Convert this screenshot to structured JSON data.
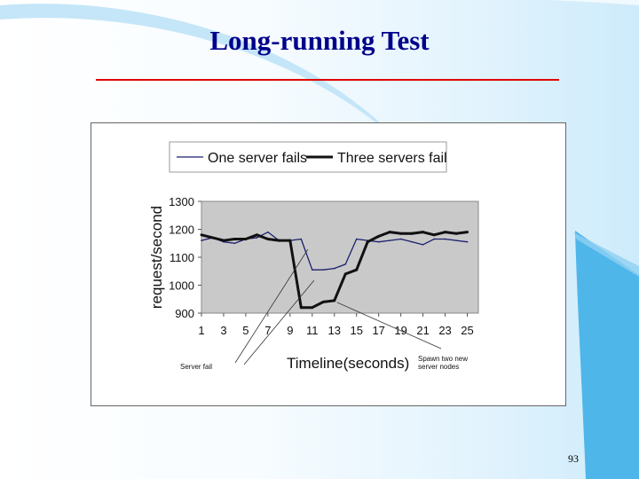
{
  "slide": {
    "title": "Long-running Test",
    "page_number": "93"
  },
  "chart_data": {
    "type": "line",
    "title": "",
    "xlabel": "Timeline(seconds)",
    "ylabel": "request/second",
    "xlim": [
      1,
      26
    ],
    "ylim": [
      900,
      1300
    ],
    "x_ticks": [
      "1",
      "3",
      "5",
      "7",
      "9",
      "11",
      "13",
      "15",
      "17",
      "19",
      "21",
      "23",
      "25"
    ],
    "y_ticks": [
      "1300",
      "1200",
      "1100",
      "1000",
      "900"
    ],
    "grid": false,
    "legend": "top",
    "series": [
      {
        "name": "One server fails",
        "color": "#1a1f6e",
        "style": "thin",
        "x": [
          1,
          2,
          3,
          4,
          5,
          6,
          7,
          8,
          9,
          10,
          11,
          12,
          13,
          14,
          15,
          16,
          17,
          18,
          19,
          20,
          21,
          22,
          23,
          24,
          25
        ],
        "values": [
          1160,
          1170,
          1155,
          1150,
          1165,
          1170,
          1190,
          1160,
          1160,
          1165,
          1055,
          1055,
          1060,
          1075,
          1165,
          1160,
          1155,
          1160,
          1165,
          1155,
          1145,
          1165,
          1165,
          1160,
          1155
        ]
      },
      {
        "name": "Three servers fail",
        "color": "#111111",
        "style": "thick",
        "x": [
          1,
          2,
          3,
          4,
          5,
          6,
          7,
          8,
          9,
          10,
          11,
          12,
          13,
          14,
          15,
          16,
          17,
          18,
          19,
          20,
          21,
          22,
          23,
          24,
          25
        ],
        "values": [
          1180,
          1170,
          1160,
          1165,
          1165,
          1180,
          1165,
          1160,
          1160,
          920,
          920,
          940,
          945,
          1040,
          1055,
          1155,
          1175,
          1190,
          1185,
          1185,
          1190,
          1180,
          1190,
          1185,
          1190
        ]
      }
    ],
    "annotations": [
      {
        "text": "Server fail",
        "target_x": 9,
        "target_y": 1160
      },
      {
        "text": "Spawn two new server nodes",
        "lines": [
          "Spawn two new",
          "server nodes"
        ],
        "target_x": 13,
        "target_y": 945
      }
    ]
  }
}
